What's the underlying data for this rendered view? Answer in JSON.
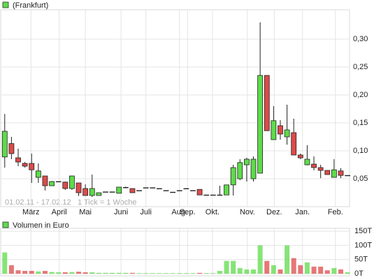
{
  "chart_data": {
    "type": "candlestick",
    "legend": "(Frankfurt)",
    "range_note": "01.02.11 - 17.02.12",
    "tick_note": "1 Tick = 1 Woche",
    "up_color": "#5edb4a",
    "down_color": "#dd4a4a",
    "grid": true,
    "xlim": [
      -0.6,
      51.3
    ],
    "xticks": [
      {
        "value": 3.9,
        "label": "März"
      },
      {
        "value": 8.1,
        "label": "April"
      },
      {
        "value": 12.0,
        "label": "Mai"
      },
      {
        "value": 17.3,
        "label": "Juni"
      },
      {
        "value": 21.0,
        "label": "Juli"
      },
      {
        "value": 26.0,
        "label": "Aug."
      },
      {
        "value": 27.2,
        "label": "Sep."
      },
      {
        "value": 30.9,
        "label": "Okt."
      },
      {
        "value": 36.1,
        "label": "Nov."
      },
      {
        "value": 40.1,
        "label": "Dez."
      },
      {
        "value": 44.3,
        "label": "Jan."
      },
      {
        "value": 49.2,
        "label": "Feb."
      }
    ],
    "ylim": [
      0,
      0.3525
    ],
    "yticks": [
      {
        "value": 0.05,
        "label": "0,05"
      },
      {
        "value": 0.1,
        "label": "0,10"
      },
      {
        "value": 0.15,
        "label": "0,15"
      },
      {
        "value": 0.2,
        "label": "0,20"
      },
      {
        "value": 0.25,
        "label": "0,25"
      },
      {
        "value": 0.3,
        "label": "0,30"
      }
    ],
    "open": [
      0.089,
      0.113,
      0.0875,
      0.0775,
      0.0775,
      0.0525,
      0.055,
      0.0375,
      0.045,
      0.044,
      0.0325,
      0.0425,
      0.0325,
      0.02,
      0.02,
      0.0265,
      0.0265,
      0.024,
      0.0345,
      0.0325,
      0.029,
      0.034,
      0.034,
      0.0325,
      0.029,
      0.026,
      0.029,
      0.0325,
      0.029,
      0.031,
      0.021,
      0.021,
      0.021,
      0.021,
      0.039,
      0.05,
      0.075,
      0.05,
      0.06,
      0.235,
      0.12,
      0.145,
      0.125,
      0.1325,
      0.0925,
      0.075,
      0.0762,
      0.07,
      0.065,
      0.0525,
      0.064,
      0.056
    ],
    "high": [
      0.166,
      0.125,
      0.104,
      0.08,
      0.095,
      0.0775,
      0.055,
      0.046,
      0.045,
      0.045,
      0.055,
      0.0425,
      0.04,
      0.0575,
      0.025,
      0.0265,
      0.0265,
      0.035,
      0.036,
      0.0325,
      0.029,
      0.034,
      0.034,
      0.0325,
      0.029,
      0.026,
      0.029,
      0.0325,
      0.029,
      0.031,
      0.021,
      0.021,
      0.0375,
      0.039,
      0.075,
      0.085,
      0.0875,
      0.09,
      0.33,
      0.235,
      0.18,
      0.155,
      0.1825,
      0.1575,
      0.095,
      0.11,
      0.09,
      0.075,
      0.065,
      0.085,
      0.069,
      0.056
    ],
    "low": [
      0.07,
      0.085,
      0.0725,
      0.07,
      0.0425,
      0.0425,
      0.029,
      0.0375,
      0.045,
      0.03,
      0.03,
      0.019,
      0.02,
      0.0175,
      0.02,
      0.0265,
      0.0265,
      0.024,
      0.0345,
      0.025,
      0.029,
      0.034,
      0.034,
      0.0325,
      0.029,
      0.026,
      0.029,
      0.0325,
      0.029,
      0.021,
      0.021,
      0.021,
      0.021,
      0.021,
      0.02,
      0.0475,
      0.045,
      0.045,
      0.06,
      0.136,
      0.12,
      0.12,
      0.111,
      0.0925,
      0.085,
      0.074,
      0.065,
      0.051,
      0.0575,
      0.0525,
      0.051,
      0.056
    ],
    "close": [
      0.135,
      0.095,
      0.08,
      0.0725,
      0.066,
      0.064,
      0.0375,
      0.045,
      0.045,
      0.0325,
      0.055,
      0.025,
      0.02,
      0.0325,
      0.025,
      0.0265,
      0.0265,
      0.035,
      0.0345,
      0.025,
      0.029,
      0.034,
      0.034,
      0.0325,
      0.029,
      0.026,
      0.029,
      0.0325,
      0.029,
      0.021,
      0.021,
      0.021,
      0.021,
      0.039,
      0.07,
      0.079,
      0.085,
      0.085,
      0.235,
      0.136,
      0.154,
      0.13,
      0.1375,
      0.0925,
      0.0875,
      0.085,
      0.07,
      0.065,
      0.0575,
      0.066,
      0.056,
      0.056
    ],
    "volume_legend": "Volumen in Euro",
    "volume": [
      75000,
      30000,
      12000,
      10000,
      10000,
      8000,
      10000,
      6000,
      5000,
      5000,
      6000,
      7000,
      5000,
      5000,
      3000,
      3000,
      3000,
      3000,
      3000,
      3000,
      2000,
      2000,
      2000,
      2000,
      2000,
      2000,
      2000,
      2000,
      2000,
      3000,
      2000,
      2000,
      10000,
      45000,
      45000,
      20000,
      15000,
      15000,
      100000,
      45000,
      30000,
      15000,
      100000,
      55000,
      30000,
      40000,
      25000,
      25000,
      12000,
      20000,
      15000,
      5000
    ],
    "vlim": [
      0,
      160000
    ],
    "vticks": [
      {
        "value": 0,
        "label": "0T"
      },
      {
        "value": 50000,
        "label": "50T"
      },
      {
        "value": 100000,
        "label": "100T"
      },
      {
        "value": 150000,
        "label": "150T"
      }
    ]
  }
}
